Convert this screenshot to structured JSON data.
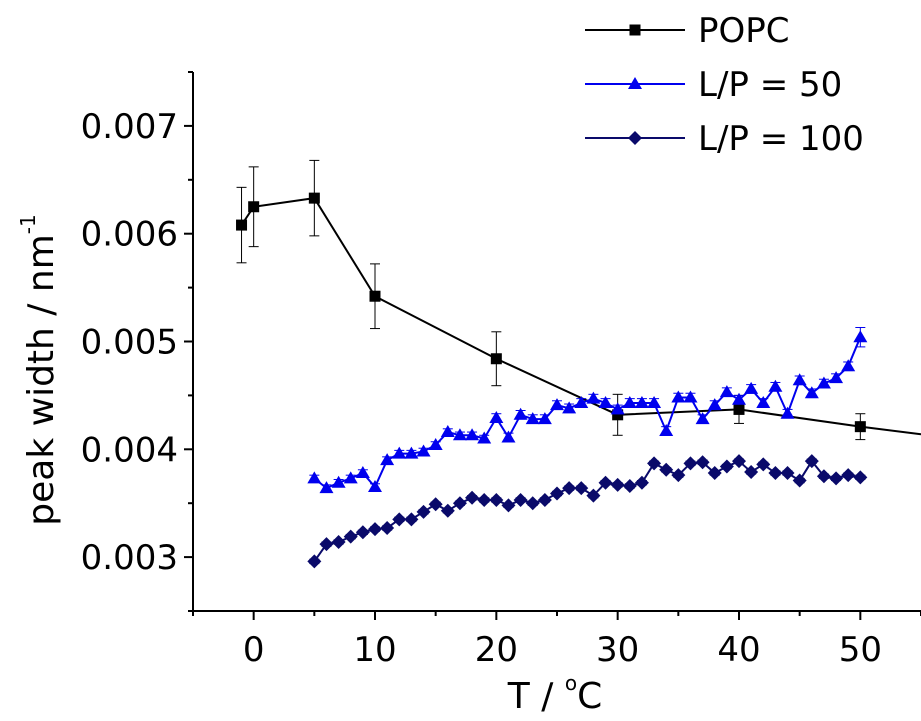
{
  "chart_data": {
    "type": "line",
    "xlabel": "T / ",
    "xlabel_unit": "C",
    "xlabel_degree": "o",
    "ylabel": "peak width / nm",
    "ylabel_exp": "-1",
    "xlim": [
      -5,
      55
    ],
    "ylim": [
      0.0025,
      0.0075
    ],
    "x_ticks": [
      0,
      10,
      20,
      30,
      40,
      50
    ],
    "x_tick_labels": [
      "0",
      "10",
      "20",
      "30",
      "40",
      "50"
    ],
    "y_ticks": [
      0.003,
      0.004,
      0.005,
      0.006,
      0.007
    ],
    "y_tick_labels": [
      "0.003",
      "0.004",
      "0.005",
      "0.006",
      "0.007"
    ],
    "grid": false,
    "legend_position": "top-right",
    "series": [
      {
        "name": "POPC",
        "color": "#000000",
        "marker": "square",
        "x": [
          -1,
          0,
          5,
          10,
          20,
          30,
          40,
          50,
          55
        ],
        "y": [
          0.00608,
          0.00625,
          0.00633,
          0.00542,
          0.00484,
          0.00432,
          0.00437,
          0.00421,
          0.00414
        ],
        "err": [
          0.00035,
          0.00037,
          0.00035,
          0.0003,
          0.00025,
          0.00019,
          0.00013,
          0.00012,
          0
        ],
        "markers_shown": [
          true,
          true,
          true,
          true,
          true,
          true,
          true,
          true,
          false
        ]
      },
      {
        "name": "L/P = 50",
        "color": "#0000ee",
        "marker": "triangle",
        "x": [
          5,
          6,
          7,
          8,
          9,
          10,
          11,
          12,
          13,
          14,
          15,
          16,
          17,
          18,
          19,
          20,
          21,
          22,
          23,
          24,
          25,
          26,
          27,
          28,
          29,
          30,
          31,
          32,
          33,
          34,
          35,
          36,
          37,
          38,
          39,
          40,
          41,
          42,
          43,
          44,
          45,
          46,
          47,
          48,
          49,
          50
        ],
        "y": [
          0.00373,
          0.00364,
          0.00369,
          0.00373,
          0.00378,
          0.00365,
          0.0039,
          0.00396,
          0.00396,
          0.00398,
          0.00404,
          0.00416,
          0.00413,
          0.00413,
          0.0041,
          0.00429,
          0.00411,
          0.00432,
          0.00428,
          0.00428,
          0.00441,
          0.00438,
          0.00443,
          0.00447,
          0.00443,
          0.00437,
          0.00443,
          0.00443,
          0.00443,
          0.00417,
          0.00448,
          0.00448,
          0.00428,
          0.00441,
          0.00453,
          0.00446,
          0.00456,
          0.00443,
          0.00458,
          0.00433,
          0.00464,
          0.00452,
          0.00461,
          0.00466,
          0.00477,
          0.00504
        ],
        "err": [
          3e-05,
          3e-05,
          3e-05,
          3e-05,
          3e-05,
          3e-05,
          3e-05,
          3e-05,
          3e-05,
          3e-05,
          3e-05,
          3e-05,
          3e-05,
          3e-05,
          3e-05,
          4e-05,
          4e-05,
          4e-05,
          4e-05,
          4e-05,
          4e-05,
          4e-05,
          4e-05,
          4e-05,
          4e-05,
          4e-05,
          4e-05,
          4e-05,
          4e-05,
          4e-05,
          4e-05,
          4e-05,
          4e-05,
          4e-05,
          4e-05,
          4e-05,
          4e-05,
          4e-05,
          4e-05,
          4e-05,
          4e-05,
          4e-05,
          4e-05,
          4e-05,
          4e-05,
          9e-05
        ]
      },
      {
        "name": "L/P = 100",
        "color": "#0a0a6a",
        "marker": "diamond",
        "x": [
          5,
          6,
          7,
          8,
          9,
          10,
          11,
          12,
          13,
          14,
          15,
          16,
          17,
          18,
          19,
          20,
          21,
          22,
          23,
          24,
          25,
          26,
          27,
          28,
          29,
          30,
          31,
          32,
          33,
          34,
          35,
          36,
          37,
          38,
          39,
          40,
          41,
          42,
          43,
          44,
          45,
          46,
          47,
          48,
          49,
          50
        ],
        "y": [
          0.00296,
          0.00312,
          0.00314,
          0.00319,
          0.00323,
          0.00326,
          0.00327,
          0.00335,
          0.00335,
          0.00342,
          0.00349,
          0.00343,
          0.0035,
          0.00355,
          0.00353,
          0.00353,
          0.00348,
          0.00353,
          0.0035,
          0.00353,
          0.00359,
          0.00364,
          0.00364,
          0.00357,
          0.00369,
          0.00367,
          0.00366,
          0.00369,
          0.00387,
          0.00381,
          0.00376,
          0.00387,
          0.00388,
          0.00378,
          0.00384,
          0.00389,
          0.00379,
          0.00386,
          0.00378,
          0.00378,
          0.00371,
          0.00389,
          0.00375,
          0.00373,
          0.00376,
          0.00374
        ],
        "err": [
          2e-05,
          2e-05,
          2e-05,
          2e-05,
          2e-05,
          2e-05,
          2e-05,
          2e-05,
          2e-05,
          2e-05,
          2e-05,
          2e-05,
          2e-05,
          2e-05,
          2e-05,
          2e-05,
          2e-05,
          2e-05,
          2e-05,
          2e-05,
          2e-05,
          2e-05,
          2e-05,
          2e-05,
          2e-05,
          2e-05,
          2e-05,
          2e-05,
          2e-05,
          2e-05,
          2e-05,
          2e-05,
          2e-05,
          2e-05,
          2e-05,
          2e-05,
          2e-05,
          2e-05,
          2e-05,
          2e-05,
          2e-05,
          2e-05,
          2e-05,
          2e-05,
          2e-05,
          2e-05
        ]
      }
    ]
  }
}
